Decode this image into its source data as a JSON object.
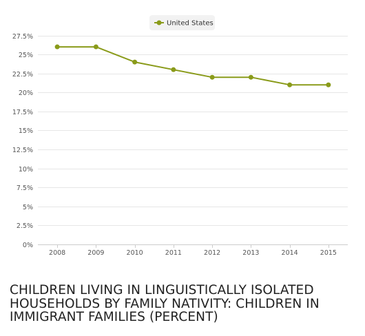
{
  "chart_data": {
    "type": "line",
    "title": "CHILDREN LIVING IN LINGUISTICALLY ISOLATED HOUSEHOLDS BY FAMILY NATIVITY: CHILDREN IN IMMIGRANT FAMILIES (PERCENT)",
    "xlabel": "",
    "ylabel": "",
    "x": [
      "2008",
      "2009",
      "2010",
      "2011",
      "2012",
      "2013",
      "2014",
      "2015"
    ],
    "series": [
      {
        "name": "United States",
        "color": "#8a9b1a",
        "values": [
          26,
          26,
          24,
          23,
          22,
          22,
          21,
          21
        ]
      }
    ],
    "ylim": [
      0,
      27.5
    ],
    "yticks": [
      0,
      2.5,
      5,
      7.5,
      10,
      12.5,
      15,
      17.5,
      20,
      22.5,
      25,
      27.5
    ],
    "ytick_labels": [
      "0%",
      "2.5%",
      "5%",
      "7.5%",
      "10%",
      "12.5%",
      "15%",
      "17.5%",
      "20%",
      "22.5%",
      "25%",
      "27.5%"
    ],
    "grid": true,
    "legend_position": "top-center"
  }
}
